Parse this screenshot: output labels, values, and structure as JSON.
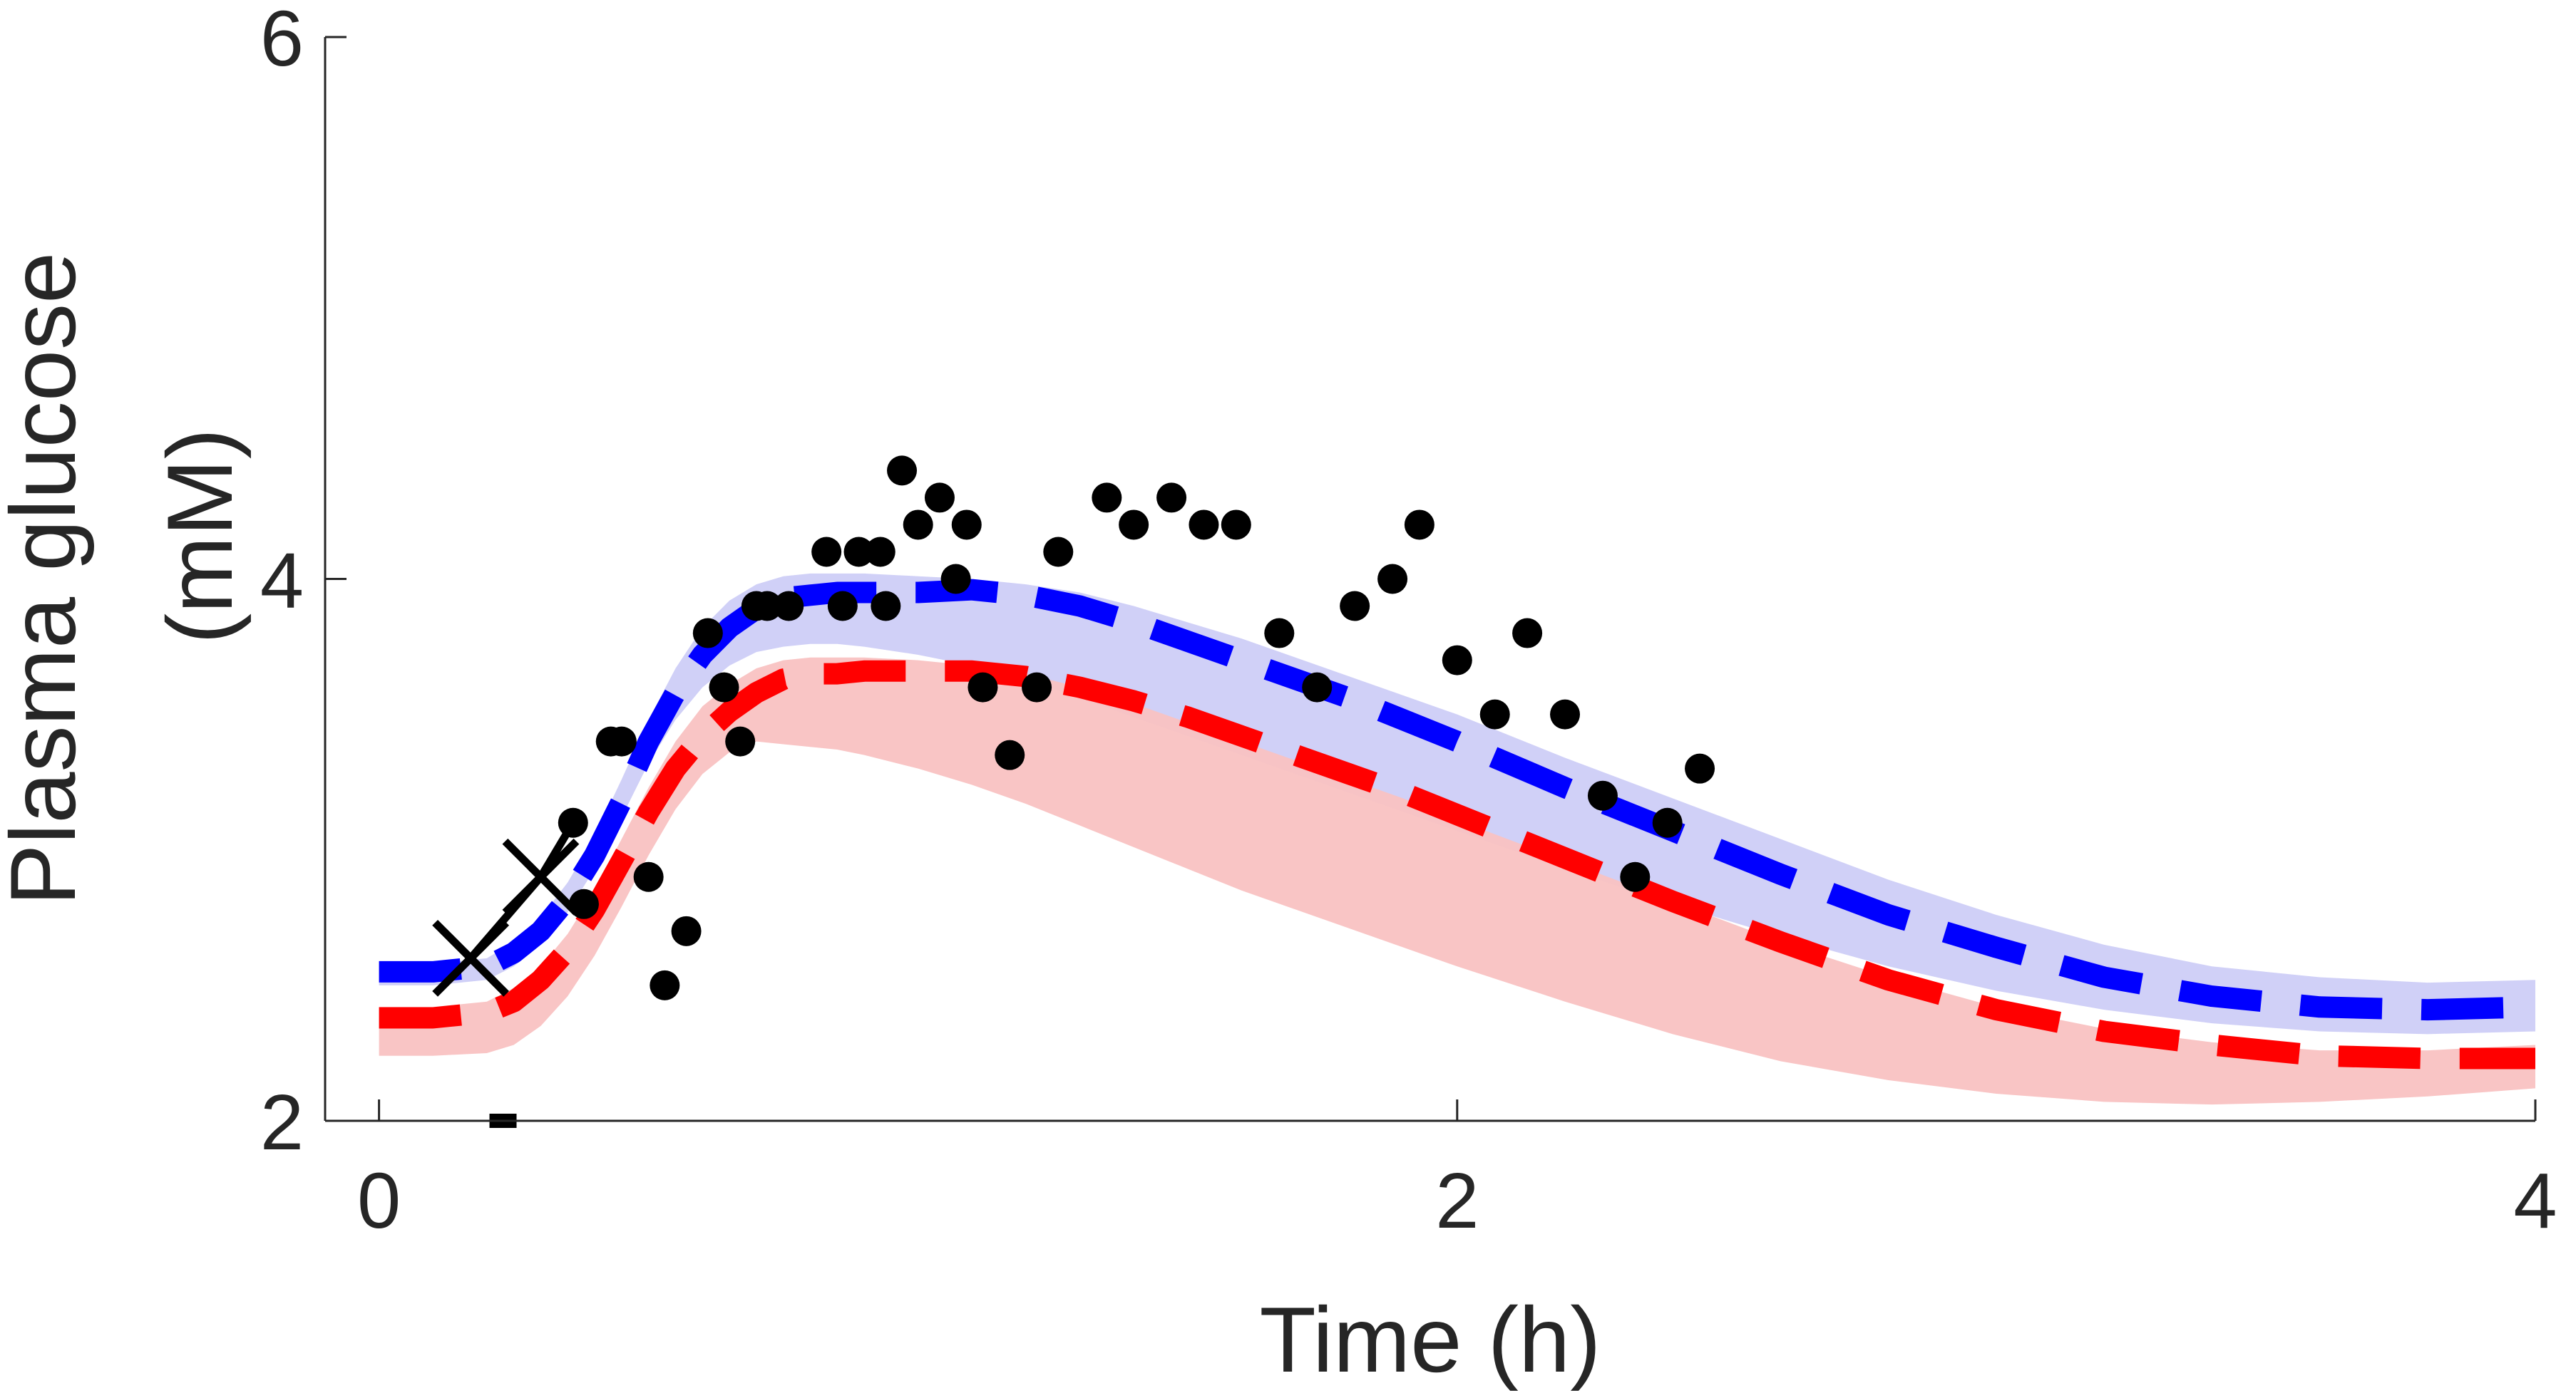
{
  "chart_data": {
    "type": "line",
    "xlabel": "Time (h)",
    "ylabel_lines": [
      "Plasma glucose",
      "(mM)"
    ],
    "xlim": [
      -0.1,
      4
    ],
    "ylim": [
      2,
      6
    ],
    "xticks": [
      0,
      2,
      4
    ],
    "yticks": [
      2,
      4,
      6
    ],
    "xtick_labels": [
      "0",
      "2",
      "4"
    ],
    "ytick_labels": [
      "2",
      "4",
      "6"
    ],
    "grid": false,
    "colors": {
      "blue": "#0000ff",
      "red": "#ff0000",
      "blue_band": "#c8c8f6",
      "red_band": "#f9c2c2",
      "overlap": "#d8a5c9",
      "data": "#000000"
    },
    "series": [
      {
        "style": "dashed",
        "color": "blue",
        "x": [
          0,
          0.1,
          0.2,
          0.25,
          0.3,
          0.35,
          0.4,
          0.45,
          0.5,
          0.55,
          0.6,
          0.65,
          0.7,
          0.75,
          0.8,
          0.85,
          0.9,
          1.0,
          1.1,
          1.2,
          1.3,
          1.4,
          1.5,
          1.6,
          1.7,
          1.8,
          1.9,
          2.0,
          2.2,
          2.4,
          2.6,
          2.8,
          3.0,
          3.2,
          3.4,
          3.6,
          3.8,
          4.0
        ],
        "y": [
          2.55,
          2.55,
          2.57,
          2.62,
          2.7,
          2.82,
          2.98,
          3.18,
          3.4,
          3.58,
          3.72,
          3.82,
          3.89,
          3.93,
          3.94,
          3.95,
          3.95,
          3.95,
          3.96,
          3.94,
          3.9,
          3.84,
          3.77,
          3.7,
          3.63,
          3.56,
          3.48,
          3.4,
          3.23,
          3.07,
          2.91,
          2.76,
          2.64,
          2.53,
          2.46,
          2.42,
          2.41,
          2.42
        ],
        "band_lower": [
          2.5,
          2.5,
          2.52,
          2.57,
          2.65,
          2.77,
          2.93,
          3.12,
          3.32,
          3.48,
          3.6,
          3.68,
          3.73,
          3.75,
          3.76,
          3.76,
          3.75,
          3.72,
          3.68,
          3.63,
          3.56,
          3.49,
          3.42,
          3.35,
          3.28,
          3.21,
          3.14,
          3.07,
          2.93,
          2.8,
          2.68,
          2.57,
          2.48,
          2.41,
          2.36,
          2.33,
          2.32,
          2.33
        ],
        "band_upper": [
          2.58,
          2.58,
          2.6,
          2.66,
          2.75,
          2.88,
          3.05,
          3.26,
          3.48,
          3.67,
          3.82,
          3.92,
          3.98,
          4.01,
          4.02,
          4.02,
          4.02,
          4.01,
          4.0,
          3.98,
          3.95,
          3.9,
          3.84,
          3.78,
          3.71,
          3.64,
          3.57,
          3.5,
          3.34,
          3.19,
          3.04,
          2.89,
          2.76,
          2.65,
          2.57,
          2.53,
          2.51,
          2.52
        ]
      },
      {
        "style": "dashed",
        "color": "red",
        "x": [
          0,
          0.1,
          0.2,
          0.25,
          0.3,
          0.35,
          0.4,
          0.45,
          0.5,
          0.55,
          0.6,
          0.65,
          0.7,
          0.75,
          0.8,
          0.85,
          0.9,
          1.0,
          1.1,
          1.2,
          1.3,
          1.4,
          1.5,
          1.6,
          1.7,
          1.8,
          1.9,
          2.0,
          2.2,
          2.4,
          2.6,
          2.8,
          3.0,
          3.2,
          3.4,
          3.6,
          3.8,
          4.0
        ],
        "y": [
          2.38,
          2.38,
          2.4,
          2.44,
          2.52,
          2.63,
          2.78,
          2.96,
          3.14,
          3.3,
          3.42,
          3.51,
          3.58,
          3.63,
          3.65,
          3.65,
          3.66,
          3.66,
          3.66,
          3.64,
          3.6,
          3.55,
          3.49,
          3.42,
          3.35,
          3.28,
          3.21,
          3.13,
          2.97,
          2.81,
          2.66,
          2.52,
          2.41,
          2.33,
          2.28,
          2.24,
          2.23,
          2.23
        ],
        "band_lower": [
          2.24,
          2.24,
          2.25,
          2.28,
          2.35,
          2.46,
          2.61,
          2.79,
          2.98,
          3.15,
          3.28,
          3.36,
          3.4,
          3.39,
          3.38,
          3.37,
          3.35,
          3.3,
          3.24,
          3.17,
          3.09,
          3.01,
          2.93,
          2.85,
          2.78,
          2.71,
          2.64,
          2.57,
          2.44,
          2.32,
          2.22,
          2.15,
          2.1,
          2.07,
          2.06,
          2.07,
          2.09,
          2.12
        ],
        "band_upper": [
          2.42,
          2.42,
          2.44,
          2.49,
          2.57,
          2.69,
          2.85,
          3.04,
          3.23,
          3.4,
          3.53,
          3.61,
          3.67,
          3.7,
          3.71,
          3.71,
          3.71,
          3.7,
          3.68,
          3.65,
          3.6,
          3.54,
          3.47,
          3.4,
          3.33,
          3.26,
          3.19,
          3.11,
          2.96,
          2.81,
          2.66,
          2.53,
          2.42,
          2.34,
          2.29,
          2.26,
          2.26,
          2.28
        ]
      }
    ],
    "data_points": {
      "marker": "filled-circle",
      "x": [
        0.36,
        0.38,
        0.43,
        0.45,
        0.5,
        0.53,
        0.57,
        0.61,
        0.64,
        0.67,
        0.7,
        0.72,
        0.76,
        0.83,
        0.86,
        0.89,
        0.93,
        0.94,
        0.97,
        1.0,
        1.04,
        1.07,
        1.09,
        1.12,
        1.17,
        1.22,
        1.26,
        1.35,
        1.4,
        1.47,
        1.53,
        1.59,
        1.67,
        1.74,
        1.81,
        1.88,
        1.93,
        2.0,
        2.07,
        2.13,
        2.2,
        2.27,
        2.33,
        2.39,
        2.45
      ],
      "y": [
        3.1,
        2.8,
        3.4,
        3.4,
        2.9,
        2.5,
        2.7,
        3.8,
        3.6,
        3.4,
        3.9,
        3.9,
        3.9,
        4.1,
        3.9,
        4.1,
        4.1,
        3.9,
        4.4,
        4.2,
        4.3,
        4.0,
        4.2,
        3.6,
        3.35,
        3.6,
        4.1,
        4.3,
        4.2,
        4.3,
        4.2,
        4.2,
        3.8,
        3.6,
        3.9,
        4.0,
        4.2,
        3.7,
        3.5,
        3.8,
        3.5,
        3.2,
        2.9,
        3.1,
        3.3
      ]
    },
    "highlighted_points": {
      "marker": "x-cross",
      "x": [
        0.17,
        0.3
      ],
      "y": [
        2.6,
        2.9
      ]
    },
    "baseline_marker": {
      "marker": "square",
      "x": 0.23,
      "y": 2
    }
  }
}
